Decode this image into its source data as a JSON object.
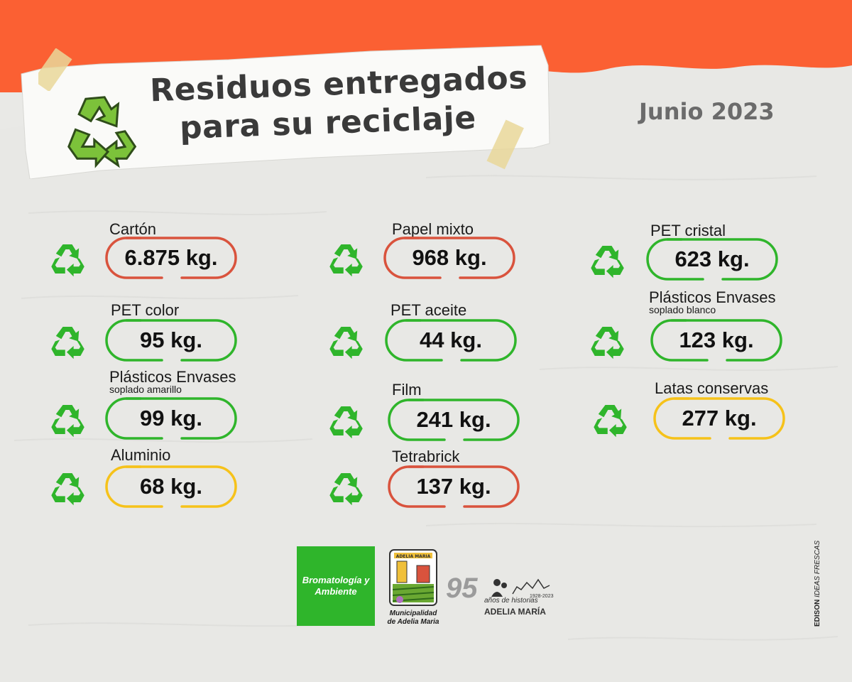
{
  "header": {
    "title_line1": "Residuos entregados",
    "title_line2": "para su reciclaje",
    "date": "Junio 2023"
  },
  "colors": {
    "band": "#fb6033",
    "red": "#d9533d",
    "green": "#2fb52b",
    "yellow": "#f6c21a",
    "icon": "#2fb52b"
  },
  "items": [
    {
      "label": "Cartón",
      "value": "6.875 kg.",
      "color": "red"
    },
    {
      "label": "Papel mixto",
      "value": "968 kg.",
      "color": "red"
    },
    {
      "label": "PET cristal",
      "value": "623 kg.",
      "color": "green"
    },
    {
      "label": "PET color",
      "value": "95 kg.",
      "color": "green"
    },
    {
      "label": "PET aceite",
      "value": "44 kg.",
      "color": "green"
    },
    {
      "label": "Plásticos Envases",
      "sub": "soplado blanco",
      "value": "123 kg.",
      "color": "green"
    },
    {
      "label": "Plásticos Envases",
      "sub": "soplado amarillo",
      "value": "99 kg.",
      "color": "green"
    },
    {
      "label": "Film",
      "value": "241 kg.",
      "color": "green"
    },
    {
      "label": "Latas conservas",
      "value": "277 kg.",
      "color": "yellow"
    },
    {
      "label": "Aluminio",
      "value": "68 kg.",
      "color": "yellow"
    },
    {
      "label": "Tetrabrick",
      "value": "137 kg.",
      "color": "red"
    }
  ],
  "footer": {
    "logo1": "Bromatología y Ambiente",
    "muni_sign": "ADELIA MARIA",
    "muni_name_line1": "Municipalidad",
    "muni_name_line2": "de Adelia Maria",
    "anniv_number": "95",
    "anniv_text": "años de historias",
    "anniv_years": "1928-2023",
    "anniv_town": "ADELIA MARÍA",
    "credit_bold": "EDISON",
    "credit_rest": " IDEAS FRESCAS"
  },
  "icons": {
    "recycle": "recycle-icon",
    "tape": "tape-strip"
  }
}
